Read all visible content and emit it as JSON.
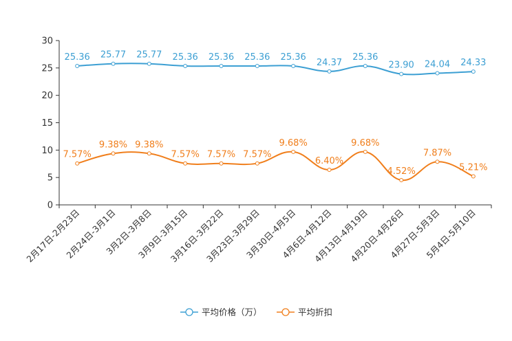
{
  "chart_data": {
    "type": "line",
    "title": "",
    "xlabel": "",
    "ylabel": "",
    "ylim": [
      0,
      30
    ],
    "yticks": [
      0,
      5,
      10,
      15,
      20,
      25,
      30
    ],
    "grid": false,
    "legend_position": "bottom-center",
    "categories": [
      "2月17日-2月23日",
      "2月24日-3月1日",
      "3月2日-3月8日",
      "3月9日-3月15日",
      "3月16日-3月22日",
      "3月23日-3月29日",
      "3月30日-4月5日",
      "4月6日-4月12日",
      "4月13日-4月19日",
      "4月20日-4月26日",
      "4月27日-5月3日",
      "5月4日-5月10日"
    ],
    "series": [
      {
        "name": "平均价格（万）",
        "color": "#3c9fd3",
        "values": [
          25.36,
          25.77,
          25.77,
          25.36,
          25.36,
          25.36,
          25.36,
          24.37,
          25.36,
          23.9,
          24.04,
          24.33
        ],
        "labels": [
          "25.36",
          "25.77",
          "25.77",
          "25.36",
          "25.36",
          "25.36",
          "25.36",
          "24.37",
          "25.36",
          "23.90",
          "24.04",
          "24.33"
        ]
      },
      {
        "name": "平均折扣",
        "color": "#f07e1b",
        "values": [
          7.57,
          9.38,
          9.38,
          7.57,
          7.57,
          7.57,
          9.68,
          6.4,
          9.68,
          4.52,
          7.87,
          5.21
        ],
        "labels": [
          "7.57%",
          "9.38%",
          "9.38%",
          "7.57%",
          "7.57%",
          "7.57%",
          "9.68%",
          "6.40%",
          "9.68%",
          "4.52%",
          "7.87%",
          "5.21%"
        ]
      }
    ]
  }
}
